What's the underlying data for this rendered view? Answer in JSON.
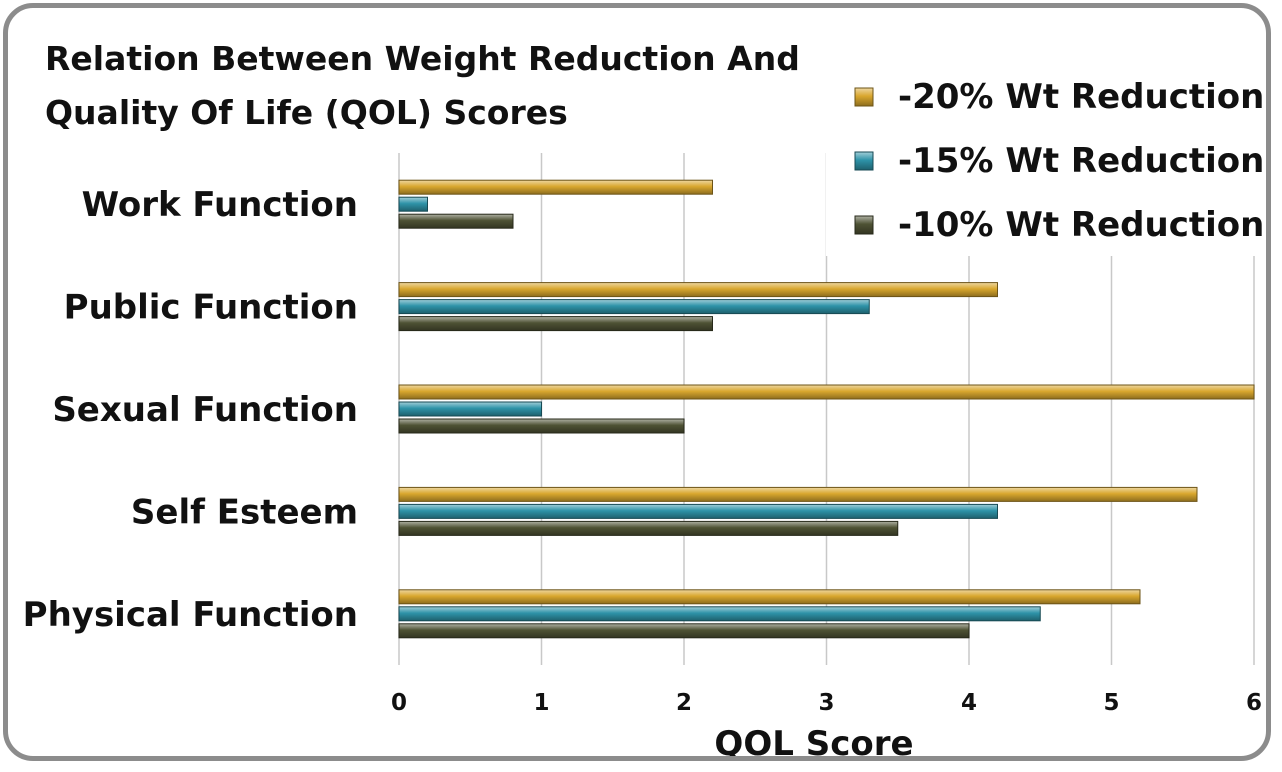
{
  "chart_data": {
    "type": "bar",
    "orientation": "horizontal",
    "title_lines": [
      "Relation Between Weight Reduction And",
      "Quality Of Life (QOL) Scores"
    ],
    "xlabel": "QOL Score",
    "ylabel": "",
    "xlim": [
      0,
      6
    ],
    "x_ticks": [
      "0",
      "1",
      "2",
      "3",
      "4",
      "5",
      "6"
    ],
    "grid": "vertical",
    "legend_position": "top-right",
    "categories": [
      "Work Function",
      "Public Function",
      "Sexual Function",
      "Self Esteem",
      "Physical Function"
    ],
    "series": [
      {
        "name": "-20% Wt Reduction",
        "color": "#D9A72E",
        "values": [
          2.2,
          4.2,
          6.0,
          5.6,
          5.2
        ]
      },
      {
        "name": "-15% Wt Reduction",
        "color": "#2E93A8",
        "values": [
          0.2,
          3.3,
          1.0,
          4.2,
          4.5
        ]
      },
      {
        "name": "-10% Wt Reduction",
        "color": "#4E5234",
        "values": [
          0.8,
          2.2,
          2.0,
          3.5,
          4.0
        ]
      }
    ]
  }
}
